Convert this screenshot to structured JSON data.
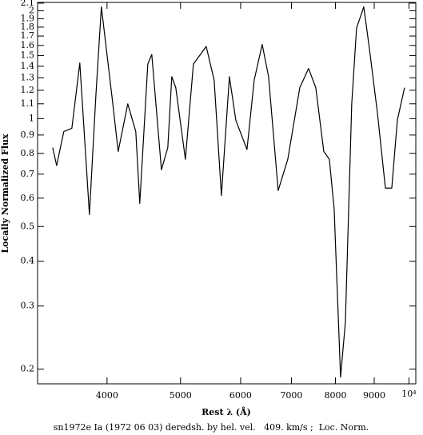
{
  "chart_data": {
    "type": "line",
    "x_label": "Rest λ (Å)",
    "y_label": "Locally Normalized Flux",
    "caption": "sn1972e Ia (1972 06 03) deredsh. by hel. vel.   409. km/s ;  Loc. Norm.",
    "x_scale": "log",
    "y_scale": "log",
    "xlim": [
      3240,
      10210
    ],
    "ylim": [
      0.182,
      2.11
    ],
    "xticks": [
      4000,
      5000,
      6000,
      7000,
      8000,
      9000,
      {
        "value": 10000,
        "label": "10⁴"
      }
    ],
    "yticks": [
      0.2,
      0.3,
      0.4,
      0.5,
      0.6,
      0.7,
      0.8,
      0.9,
      1,
      1.1,
      1.2,
      1.3,
      1.4,
      1.5,
      1.6,
      1.7,
      1.8,
      1.9,
      2,
      2.1
    ],
    "series": [
      {
        "color": "#000000",
        "x": [
          3392,
          3433,
          3508,
          3595,
          3683,
          3792,
          3867,
          3932,
          4059,
          4138,
          4260,
          4365,
          4418,
          4527,
          4582,
          4718,
          4810,
          4869,
          4928,
          5074,
          5199,
          5405,
          5537,
          5660,
          5799,
          5913,
          6117,
          6252,
          6406,
          6531,
          6724,
          6923,
          7180,
          7374,
          7537,
          7722,
          7854,
          7969,
          8126,
          8245,
          8406,
          8530,
          8719,
          8868,
          9086,
          9310,
          9492,
          9654,
          9867
        ],
        "values": [
          0.83,
          0.74,
          0.92,
          0.94,
          1.43,
          0.54,
          1.16,
          2.05,
          1.16,
          0.81,
          1.1,
          0.92,
          0.58,
          1.42,
          1.51,
          0.72,
          0.83,
          1.31,
          1.22,
          0.77,
          1.42,
          1.59,
          1.28,
          0.61,
          1.31,
          0.99,
          0.82,
          1.28,
          1.61,
          1.31,
          0.63,
          0.77,
          1.22,
          1.38,
          1.22,
          0.81,
          0.77,
          0.56,
          0.19,
          0.27,
          1.1,
          1.79,
          2.05,
          1.57,
          1.04,
          0.64,
          0.64,
          0.99,
          1.22
        ]
      }
    ]
  }
}
